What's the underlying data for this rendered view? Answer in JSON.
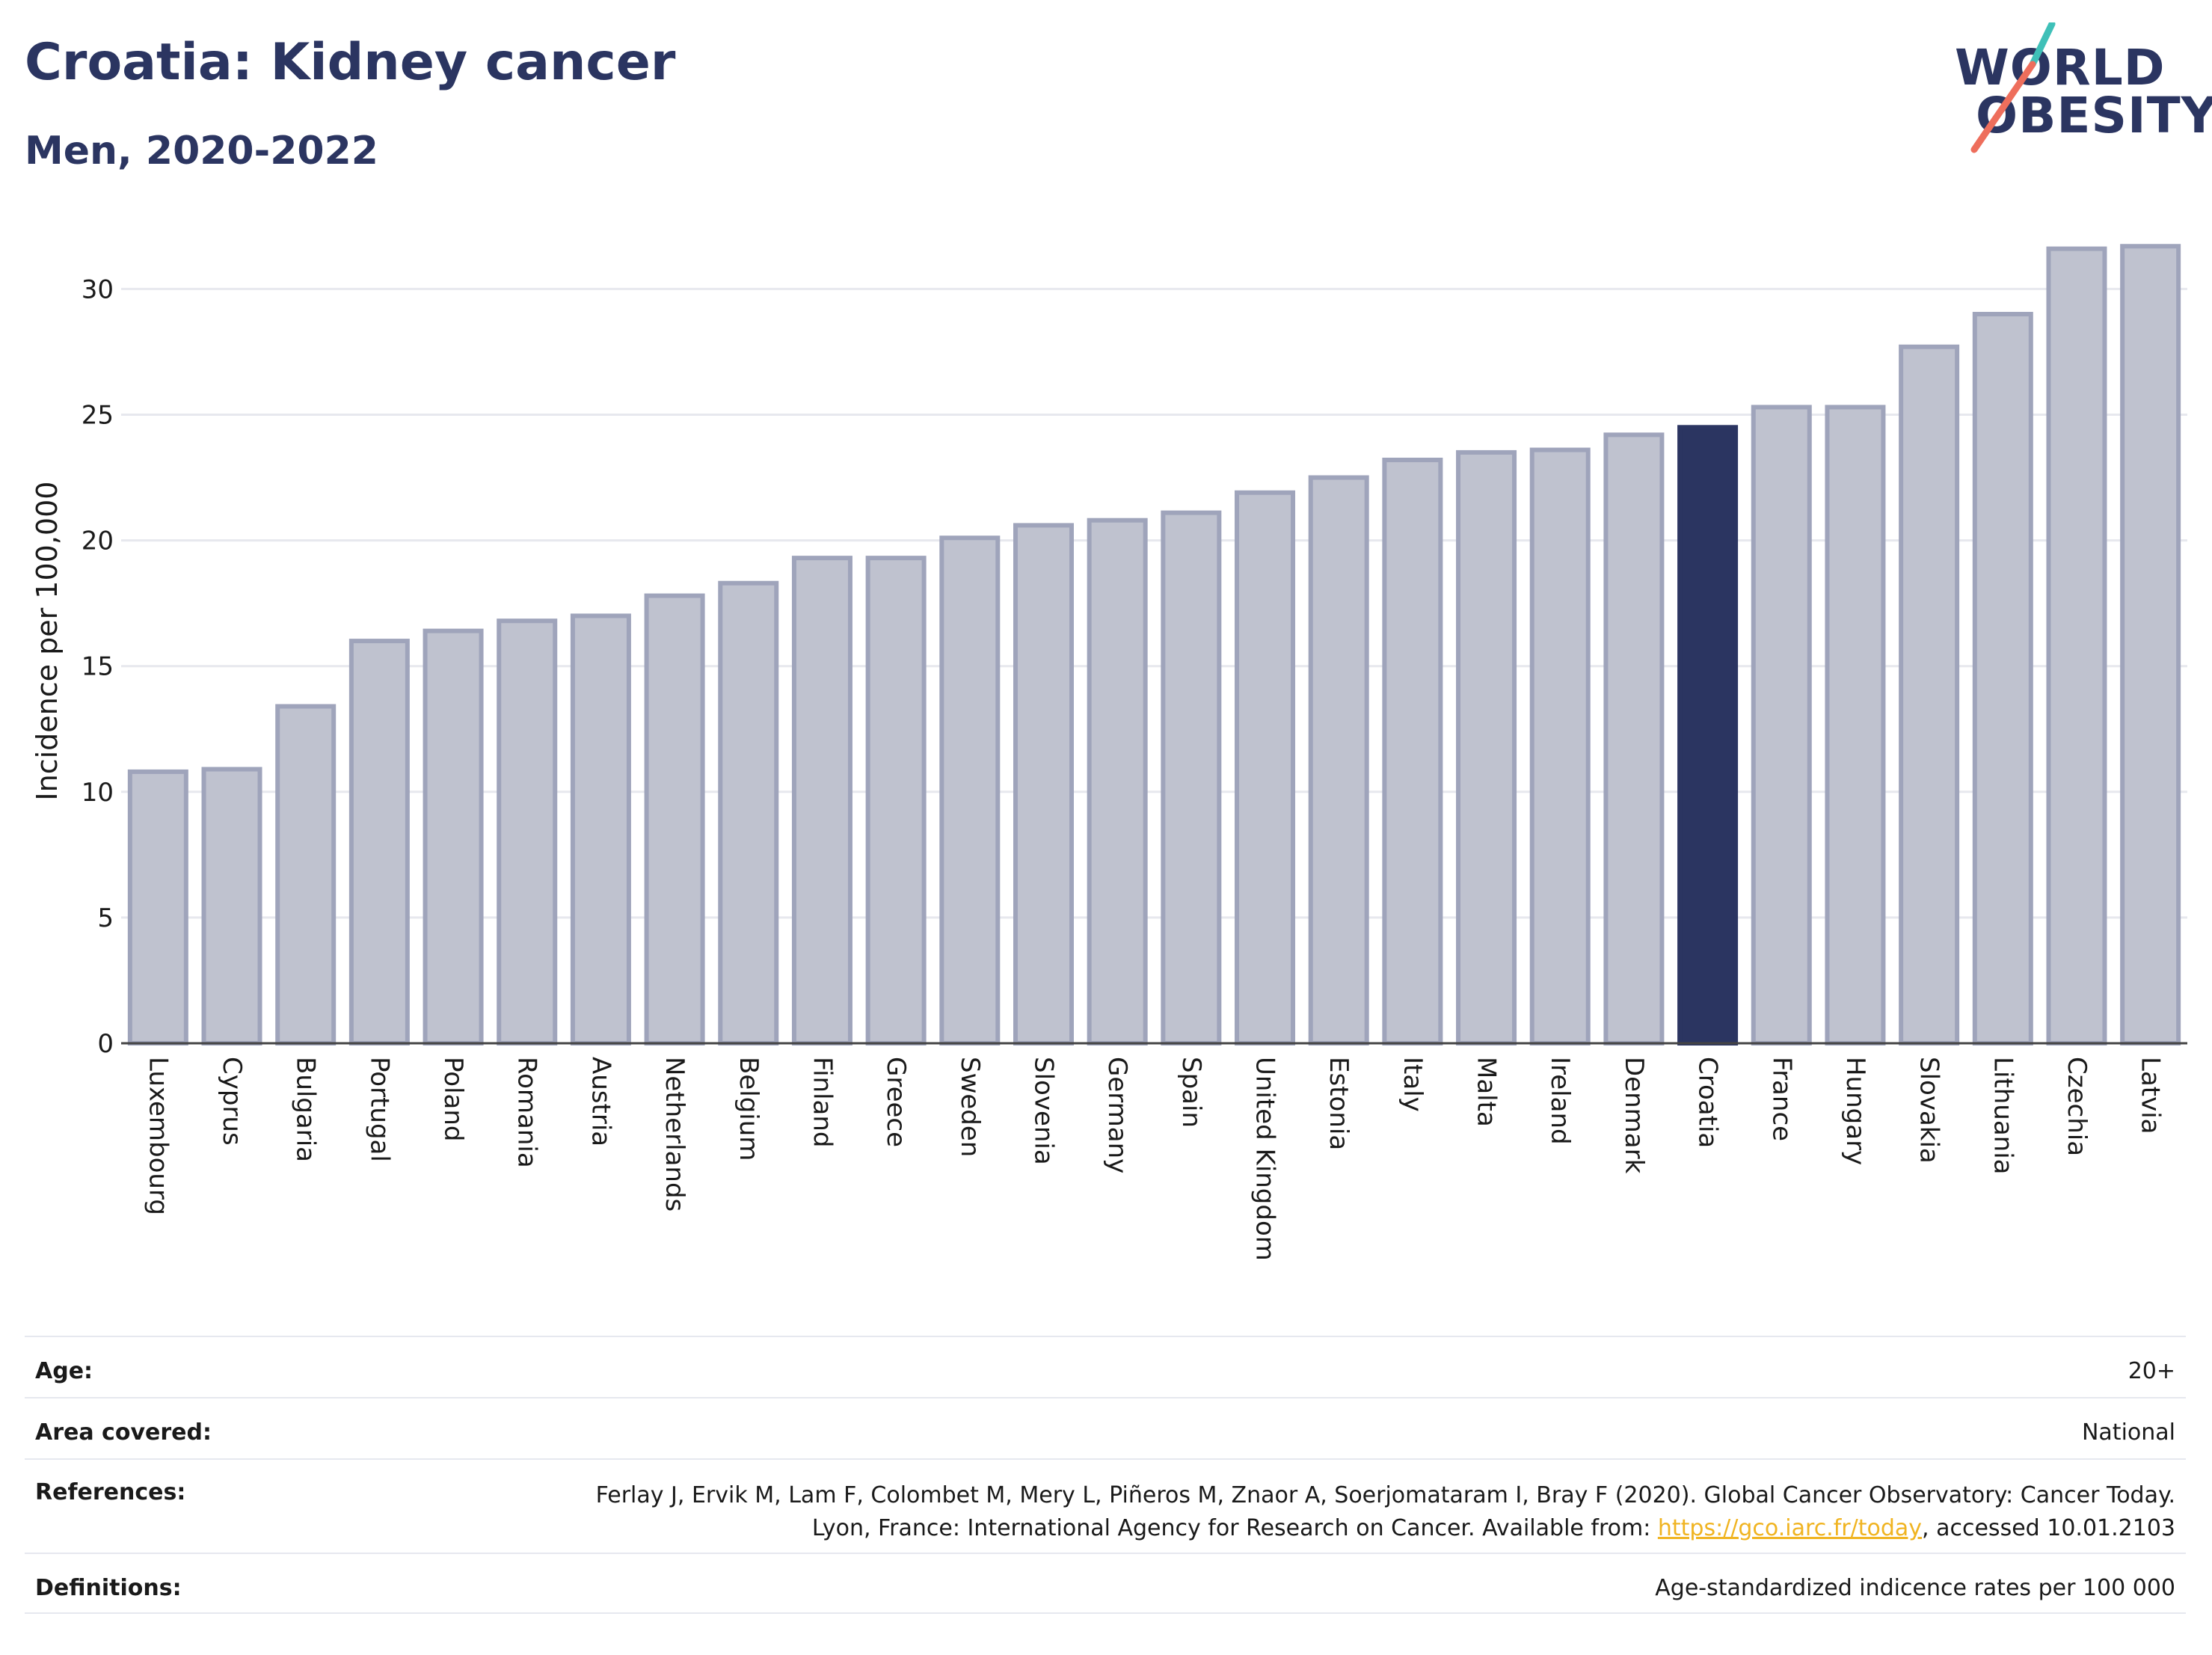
{
  "header": {
    "title": "Croatia: Kidney cancer",
    "subtitle": "Men, 2020-2022"
  },
  "logo": {
    "line1": "WORLD",
    "line2": "OBESITY"
  },
  "colors": {
    "highlight": "#2b3561",
    "bar_fill": "#bfc2cf",
    "bar_stroke": "#9fa4bb",
    "grid": "#e7e8ee",
    "logo_teal": "#3fc0b8",
    "logo_coral": "#ee6e5c"
  },
  "chart_data": {
    "type": "bar",
    "categories": [
      "Luxembourg",
      "Cyprus",
      "Bulgaria",
      "Portugal",
      "Poland",
      "Romania",
      "Austria",
      "Netherlands",
      "Belgium",
      "Finland",
      "Greece",
      "Sweden",
      "Slovenia",
      "Germany",
      "Spain",
      "United Kingdom",
      "Estonia",
      "Italy",
      "Malta",
      "Ireland",
      "Denmark",
      "Croatia",
      "France",
      "Hungary",
      "Slovakia",
      "Lithuania",
      "Czechia",
      "Latvia"
    ],
    "values": [
      10.8,
      10.9,
      13.4,
      16.0,
      16.4,
      16.8,
      17.0,
      17.8,
      18.3,
      19.3,
      19.3,
      20.1,
      20.6,
      20.8,
      21.1,
      21.9,
      22.5,
      23.2,
      23.5,
      23.6,
      24.2,
      24.5,
      25.3,
      25.3,
      27.7,
      29.0,
      31.6,
      31.7
    ],
    "highlight": "Croatia",
    "ylabel": "Incidence per 100,000",
    "xlabel": "",
    "ylim": [
      0,
      32
    ],
    "yticks": [
      0,
      5,
      10,
      15,
      20,
      25,
      30
    ],
    "grid": true
  },
  "info": {
    "age_label": "Age:",
    "age_value": "20+",
    "area_label": "Area covered:",
    "area_value": "National",
    "ref_label": "References:",
    "ref_text_1": "Ferlay J, Ervik M, Lam F, Colombet M, Mery L, Piñeros M, Znaor A, Soerjomataram I, Bray F (2020). Global Cancer Observatory: Cancer Today. Lyon, France: International Agency for Research on Cancer. Available from: ",
    "ref_link": "https://gco.iarc.fr/today",
    "ref_text_2": ", accessed 10.01.2103",
    "def_label": "Definitions:",
    "def_value": "Age-standardized indicence rates per 100 000"
  }
}
